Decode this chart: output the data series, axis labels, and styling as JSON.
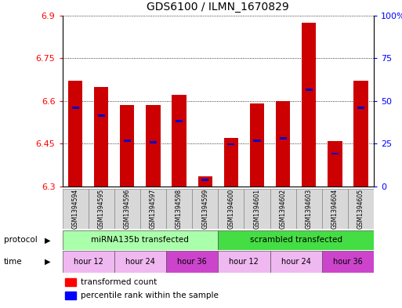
{
  "title": "GDS6100 / ILMN_1670829",
  "samples": [
    "GSM1394594",
    "GSM1394595",
    "GSM1394596",
    "GSM1394597",
    "GSM1394598",
    "GSM1394599",
    "GSM1394600",
    "GSM1394601",
    "GSM1394602",
    "GSM1394603",
    "GSM1394604",
    "GSM1394605"
  ],
  "red_values": [
    6.67,
    6.65,
    6.585,
    6.585,
    6.62,
    6.335,
    6.47,
    6.59,
    6.6,
    6.875,
    6.46,
    6.67
  ],
  "blue_values": [
    6.575,
    6.548,
    6.46,
    6.455,
    6.528,
    6.323,
    6.448,
    6.46,
    6.468,
    6.638,
    6.415,
    6.575
  ],
  "ymin": 6.3,
  "ymax": 6.9,
  "yticks": [
    6.3,
    6.45,
    6.6,
    6.75,
    6.9
  ],
  "ytick_labels": [
    "6.3",
    "6.45",
    "6.6",
    "6.75",
    "6.9"
  ],
  "right_yticks": [
    0,
    25,
    50,
    75,
    100
  ],
  "right_ytick_labels": [
    "0",
    "25",
    "50",
    "75",
    "100%"
  ],
  "protocol_labels": [
    "miRNA135b transfected",
    "scrambled transfected"
  ],
  "protocol_colors": [
    "#aaffaa",
    "#44dd44"
  ],
  "time_groups": [
    [
      0,
      2,
      "hour 12",
      "#f0b8f0"
    ],
    [
      2,
      4,
      "hour 24",
      "#f0b8f0"
    ],
    [
      4,
      6,
      "hour 36",
      "#cc44cc"
    ],
    [
      6,
      8,
      "hour 12",
      "#f0b8f0"
    ],
    [
      8,
      10,
      "hour 24",
      "#f0b8f0"
    ],
    [
      10,
      12,
      "hour 36",
      "#cc44cc"
    ]
  ],
  "bar_color": "#cc0000",
  "blue_color": "#0000cc",
  "legend_red": "transformed count",
  "legend_blue": "percentile rank within the sample",
  "bar_width": 0.55
}
